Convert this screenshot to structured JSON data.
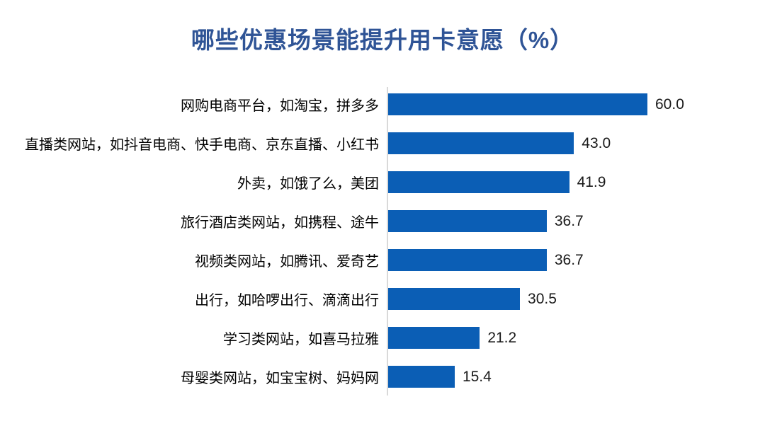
{
  "header": {
    "title": "哪些优惠场景能提升用卡意愿（%）"
  },
  "colors": {
    "bar": "#0B5EB5",
    "title_text": "#2F5496",
    "axis_line": "#D9D9D9",
    "category_text": "#000000",
    "value_text": "#1A1A1A",
    "background": "#FFFFFF"
  },
  "chart_data": {
    "type": "bar",
    "orientation": "horizontal",
    "title": "哪些优惠场景能提升用卡意愿（%）",
    "categories": [
      "网购电商平台，如淘宝，拼多多",
      "直播类网站，如抖音电商、快手电商、京东直播、小红书",
      "外卖，如饿了么，美团",
      "旅行酒店类网站，如携程、途牛",
      "视频类网站，如腾讯、爱奇艺",
      "出行，如哈啰出行、滴滴出行",
      "学习类网站，如喜马拉雅",
      "母婴类网站，如宝宝树、妈妈网"
    ],
    "values": [
      60.0,
      43.0,
      41.9,
      36.7,
      36.7,
      30.5,
      21.2,
      15.4
    ],
    "value_labels": [
      "60.0",
      "43.0",
      "41.9",
      "36.7",
      "36.7",
      "30.5",
      "21.2",
      "15.4"
    ],
    "xlabel": "",
    "ylabel": "",
    "xlim": [
      0,
      66
    ],
    "grid": false,
    "legend": false,
    "data_labels": "outside-end",
    "sort_order": "descending"
  }
}
